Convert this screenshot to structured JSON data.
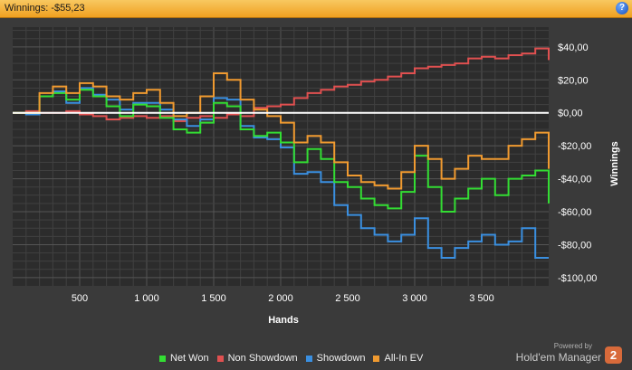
{
  "header": {
    "title": "Winnings: -$55,23",
    "help_icon": "help-icon",
    "help_glyph": "?"
  },
  "legend": [
    {
      "label": "Net Won",
      "color": "#33dd33"
    },
    {
      "label": "Non Showdown",
      "color": "#e05050"
    },
    {
      "label": "Showdown",
      "color": "#3a8fe0"
    },
    {
      "label": "All-In EV",
      "color": "#f09a30"
    }
  ],
  "branding": {
    "powered_by": "Powered by",
    "name": "Hold'em Manager",
    "badge": "2"
  },
  "chart_data": {
    "type": "line",
    "xlabel": "Hands",
    "ylabel": "Winnings",
    "xlim": [
      0,
      4000
    ],
    "ylim": [
      -105,
      52
    ],
    "x_ticks": [
      500,
      1000,
      1500,
      2000,
      2500,
      3000,
      3500
    ],
    "x_tick_labels": [
      "500",
      "1 000",
      "1 500",
      "2 000",
      "2 500",
      "3 000",
      "3 500"
    ],
    "y_ticks": [
      40,
      20,
      0,
      -20,
      -40,
      -60,
      -80,
      -100
    ],
    "y_tick_labels": [
      "$40,00",
      "$20,00",
      "$0,00",
      "-$20,00",
      "-$40,00",
      "-$60,00",
      "-$80,00",
      "-$100,00"
    ],
    "grid": true,
    "zero_line": true,
    "legend_position": "bottom",
    "series": [
      {
        "name": "Net Won",
        "color": "#33dd33",
        "x": [
          0,
          100,
          200,
          300,
          400,
          500,
          600,
          700,
          800,
          900,
          1000,
          1100,
          1200,
          1300,
          1400,
          1500,
          1600,
          1700,
          1800,
          1900,
          2000,
          2100,
          2200,
          2300,
          2400,
          2500,
          2600,
          2700,
          2800,
          2900,
          3000,
          3100,
          3200,
          3300,
          3400,
          3500,
          3600,
          3700,
          3800,
          3900,
          4000
        ],
        "y": [
          0,
          0,
          10,
          12,
          8,
          14,
          10,
          4,
          -2,
          5,
          4,
          -3,
          -10,
          -12,
          -6,
          6,
          4,
          -10,
          -14,
          -12,
          -18,
          -30,
          -22,
          -28,
          -42,
          -45,
          -52,
          -56,
          -58,
          -48,
          -26,
          -45,
          -60,
          -52,
          -46,
          -40,
          -50,
          -40,
          -38,
          -35,
          -55
        ]
      },
      {
        "name": "Non Showdown",
        "color": "#e05050",
        "x": [
          0,
          100,
          200,
          300,
          400,
          500,
          600,
          700,
          800,
          900,
          1000,
          1100,
          1200,
          1300,
          1400,
          1500,
          1600,
          1700,
          1800,
          1900,
          2000,
          2100,
          2200,
          2300,
          2400,
          2500,
          2600,
          2700,
          2800,
          2900,
          3000,
          3100,
          3200,
          3300,
          3400,
          3500,
          3600,
          3700,
          3800,
          3900,
          4000
        ],
        "y": [
          0,
          1,
          0,
          0,
          1,
          -1,
          -2,
          -4,
          -3,
          -2,
          -3,
          -2,
          -5,
          -3,
          -2,
          -3,
          -1,
          -2,
          3,
          4,
          5,
          9,
          12,
          14,
          16,
          17,
          19,
          20,
          22,
          24,
          27,
          28,
          29,
          30,
          33,
          34,
          33,
          35,
          36,
          39,
          32
        ]
      },
      {
        "name": "Showdown",
        "color": "#3a8fe0",
        "x": [
          0,
          100,
          200,
          300,
          400,
          500,
          600,
          700,
          800,
          900,
          1000,
          1100,
          1200,
          1300,
          1400,
          1500,
          1600,
          1700,
          1800,
          1900,
          2000,
          2100,
          2200,
          2300,
          2400,
          2500,
          2600,
          2700,
          2800,
          2900,
          3000,
          3100,
          3200,
          3300,
          3400,
          3500,
          3600,
          3700,
          3800,
          3900,
          4000
        ],
        "y": [
          0,
          -1,
          10,
          13,
          6,
          15,
          11,
          8,
          2,
          6,
          6,
          2,
          -4,
          -8,
          -4,
          9,
          8,
          -8,
          -15,
          -16,
          -21,
          -37,
          -36,
          -42,
          -56,
          -62,
          -70,
          -74,
          -78,
          -74,
          -64,
          -82,
          -88,
          -82,
          -78,
          -74,
          -80,
          -78,
          -70,
          -88,
          -88
        ]
      },
      {
        "name": "All-In EV",
        "color": "#f09a30",
        "x": [
          0,
          100,
          200,
          300,
          400,
          500,
          600,
          700,
          800,
          900,
          1000,
          1100,
          1200,
          1300,
          1400,
          1500,
          1600,
          1700,
          1800,
          1900,
          2000,
          2100,
          2200,
          2300,
          2400,
          2500,
          2600,
          2700,
          2800,
          2900,
          3000,
          3100,
          3200,
          3300,
          3400,
          3500,
          3600,
          3700,
          3800,
          3900,
          4000
        ],
        "y": [
          0,
          0,
          12,
          16,
          12,
          18,
          16,
          10,
          8,
          12,
          14,
          6,
          -2,
          0,
          10,
          24,
          20,
          8,
          2,
          -2,
          -6,
          -18,
          -14,
          -18,
          -30,
          -38,
          -42,
          -44,
          -46,
          -36,
          -20,
          -28,
          -40,
          -34,
          -26,
          -28,
          -28,
          -20,
          -16,
          -12,
          -34
        ]
      }
    ]
  }
}
